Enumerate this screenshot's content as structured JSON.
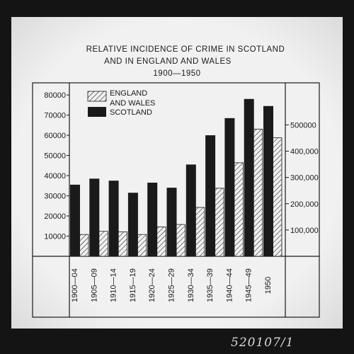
{
  "chart_data": {
    "type": "bar",
    "title": "RELATIVE INCIDENCE OF CRIME IN SCOTLAND AND IN ENGLAND AND WALES 1900—1950",
    "title_lines": [
      "RELATIVE INCIDENCE OF CRIME IN SCOTLAND",
      "AND IN ENGLAND AND WALES",
      "1900—1950"
    ],
    "xlabel": "",
    "ylabel": "",
    "categories": [
      "1900—04",
      "1905—09",
      "1910—14",
      "1915—19",
      "1920—24",
      "1925—29",
      "1930—34",
      "1935—39",
      "1940—44",
      "1945—49",
      "1950"
    ],
    "series": [
      {
        "name": "SCOTLAND",
        "axis": "left",
        "fill": "solid",
        "color": "#1a1a1a",
        "values": [
          35500,
          38500,
          37500,
          31500,
          36500,
          34000,
          45500,
          60000,
          68500,
          78000,
          74500
        ]
      },
      {
        "name": "ENGLAND AND WALES",
        "axis": "right",
        "fill": "hatched",
        "color": "#1a1a1a",
        "values": [
          83000,
          95000,
          93000,
          83000,
          112000,
          121000,
          186000,
          259000,
          356000,
          484000,
          451000
        ]
      }
    ],
    "left_axis": {
      "ylim": [
        0,
        86000
      ],
      "ticks": [
        10000,
        20000,
        30000,
        40000,
        50000,
        60000,
        70000,
        80000
      ],
      "tick_labels": [
        "10000",
        "20000",
        "30000",
        "40000",
        "50000",
        "60000",
        "70000",
        "80000"
      ]
    },
    "right_axis": {
      "ylim": [
        0,
        660000
      ],
      "ticks": [
        100000,
        200000,
        300000,
        400000,
        500000
      ],
      "tick_labels": [
        "100,000",
        "200,000",
        "300,000",
        "400,000",
        "500000"
      ]
    },
    "legend": {
      "placement": "top-left",
      "entries": [
        {
          "lines": [
            "ENGLAND",
            "AND WALES"
          ],
          "fill": "hatched"
        },
        {
          "lines": [
            "SCOTLAND"
          ],
          "fill": "solid"
        }
      ]
    },
    "grid": false
  },
  "stamp_text": "520107/1",
  "colors": {
    "background": "#141414",
    "panel": "#efefef",
    "ink": "#1a1a1a",
    "stamp": "#d8d8d8"
  }
}
